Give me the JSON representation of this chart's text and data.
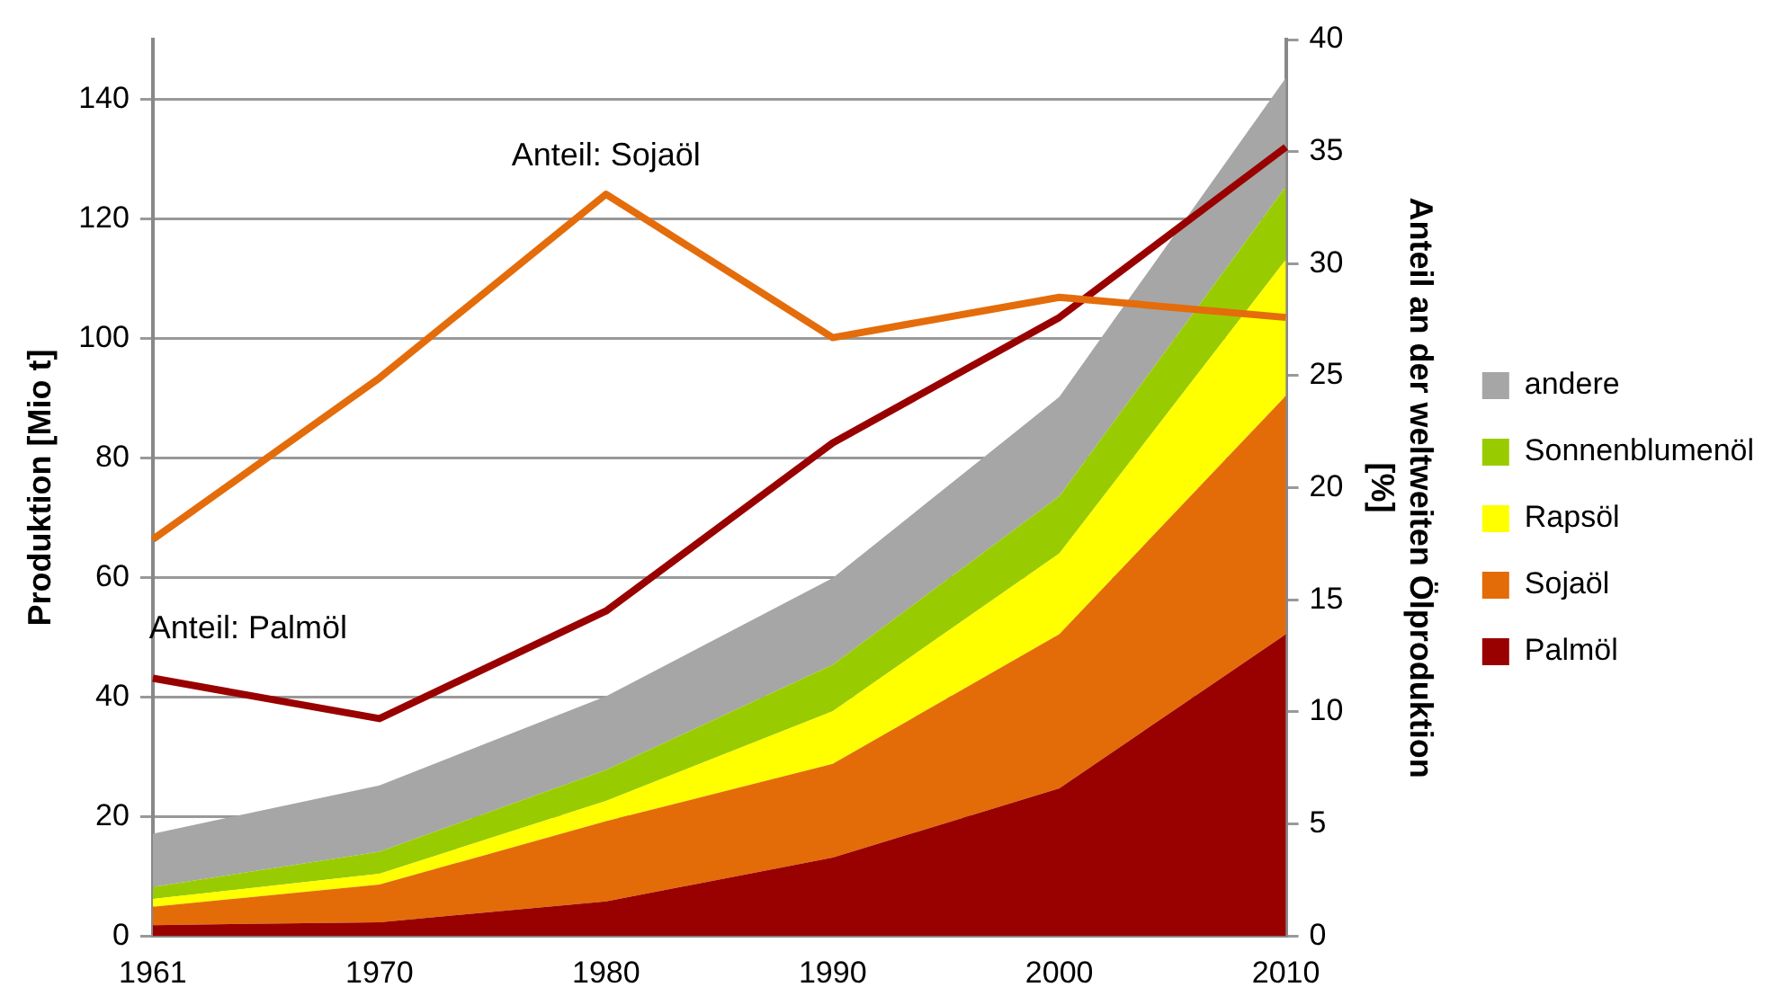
{
  "chart_data": {
    "type": "area",
    "stacked": true,
    "categories": [
      "1961",
      "1970",
      "1980",
      "1990",
      "2000",
      "2010"
    ],
    "ylabel": "Produktion [Mio t]",
    "y2label": "Anteil an der weltweiten Ölproduktion [%]",
    "ylim": [
      0,
      150
    ],
    "yticks": [
      0,
      20,
      40,
      60,
      80,
      100,
      120,
      140
    ],
    "y2lim": [
      0,
      40
    ],
    "y2ticks": [
      0,
      5,
      10,
      15,
      20,
      25,
      30,
      35,
      40
    ],
    "grid": "y",
    "legend": "right",
    "line_style": "solid",
    "marker": "none",
    "series": [
      {
        "name": "Palmöl",
        "color": "#990000",
        "values": [
          1.8,
          2.3,
          5.8,
          13.1,
          24.7,
          50.5
        ]
      },
      {
        "name": "Sojaöl",
        "color": "#e36c09",
        "values": [
          3.1,
          6.3,
          13.4,
          15.7,
          25.8,
          39.9
        ]
      },
      {
        "name": "Rapsöl",
        "color": "#ffff00",
        "values": [
          1.3,
          1.8,
          3.4,
          8.8,
          13.5,
          22.8
        ]
      },
      {
        "name": "Sonnenblumenöl",
        "color": "#99cc00",
        "values": [
          2.0,
          3.7,
          5.2,
          7.8,
          9.6,
          12.2
        ]
      },
      {
        "name": "andere",
        "color": "#a6a6a6",
        "values": [
          8.9,
          11.1,
          12.3,
          14.5,
          16.6,
          18.2
        ]
      },
      {
        "name": "Anteil: Sojaöl",
        "type": "line",
        "axis": "y2",
        "color": "#e46c0a",
        "values": [
          17.7,
          24.9,
          33.1,
          26.7,
          28.5,
          27.6
        ]
      },
      {
        "name": "Anteil: Palmöl",
        "type": "line",
        "axis": "y2",
        "color": "#990000",
        "values": [
          11.5,
          9.7,
          14.5,
          22.0,
          27.6,
          35.2
        ]
      }
    ]
  }
}
